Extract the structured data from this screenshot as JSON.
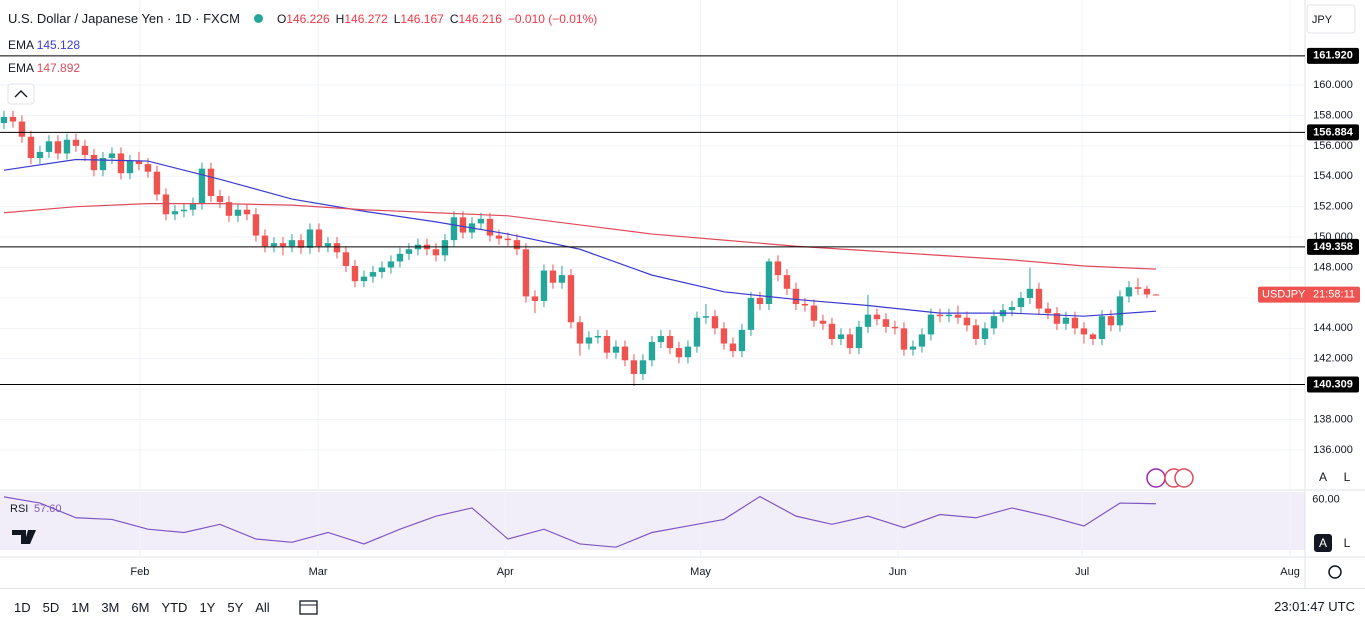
{
  "chart_data": {
    "type": "candlestick",
    "title": "U.S. Dollar / Japanese Yen · 1D · FXCM",
    "ohlc_labels": [
      "O",
      "H",
      "L",
      "C"
    ],
    "change_label": "−0.010 (−0.01%)",
    "currency": "JPY",
    "up_color": "#26a69a",
    "down_color": "#ef5350",
    "ylim": [
      133.37,
      165.59
    ],
    "yticks": [
      {
        "value": 136,
        "label": "136.000"
      },
      {
        "value": 138,
        "label": "138.000"
      },
      {
        "value": 140,
        "label": "140.000"
      },
      {
        "value": 142,
        "label": "142.000"
      },
      {
        "value": 144,
        "label": "144.000"
      },
      {
        "value": 146,
        "label": "146.000"
      },
      {
        "value": 148,
        "label": "148.000"
      },
      {
        "value": 150,
        "label": "150.000"
      },
      {
        "value": 152,
        "label": "152.000"
      },
      {
        "value": 154,
        "label": "154.000"
      },
      {
        "value": 156,
        "label": "156.000"
      },
      {
        "value": 158,
        "label": "158.000"
      },
      {
        "value": 160,
        "label": "160.000"
      }
    ],
    "xlim": [
      -0.44,
      144.56
    ],
    "xticks": [
      {
        "value": 15.1,
        "label": "Feb"
      },
      {
        "value": 34.9,
        "label": "Mar"
      },
      {
        "value": 55.7,
        "label": "Apr"
      },
      {
        "value": 77.4,
        "label": "May"
      },
      {
        "value": 99.3,
        "label": "Jun"
      },
      {
        "value": 119.8,
        "label": "Jul"
      },
      {
        "value": 142.9,
        "label": "Aug"
      }
    ],
    "grid": true,
    "open": [
      157.5,
      157.9,
      157.6,
      156.6,
      155.2,
      155.6,
      156.3,
      155.5,
      156.4,
      156.0,
      155.4,
      154.4,
      155.2,
      155.5,
      154.2,
      155.0,
      154.8,
      154.3,
      152.8,
      151.5,
      151.7,
      151.8,
      152.2,
      154.5,
      152.7,
      152.3,
      151.4,
      151.8,
      151.5,
      150.1,
      149.4,
      149.6,
      149.4,
      149.8,
      149.3,
      150.5,
      149.4,
      149.6,
      149.0,
      148.1,
      147.1,
      147.4,
      147.7,
      148.0,
      148.4,
      148.9,
      149.2,
      149.5,
      149.2,
      148.8,
      149.8,
      151.3,
      150.3,
      150.9,
      151.2,
      150.1,
      149.9,
      149.8,
      149.2,
      146.1,
      145.8,
      147.8,
      147.0,
      147.5,
      144.4,
      143.0,
      143.4,
      143.5,
      142.4,
      142.8,
      141.9,
      141.0,
      141.9,
      143.1,
      143.5,
      142.7,
      142.1,
      142.8,
      144.7,
      144.8,
      144.0,
      143.0,
      142.5,
      143.9,
      146.0,
      145.6,
      148.4,
      147.5,
      146.6,
      145.6,
      145.5,
      144.5,
      144.3,
      143.3,
      143.6,
      142.7,
      144.1,
      144.9,
      144.6,
      144.1,
      144.0,
      142.6,
      142.8,
      143.6,
      144.9,
      144.8,
      144.9,
      144.7,
      144.2,
      143.3,
      144.0,
      144.8,
      145.2,
      145.4,
      146.0,
      146.6,
      145.3,
      145.0,
      144.3,
      144.7,
      144.0,
      143.6,
      143.3,
      144.8,
      144.2,
      146.1,
      146.7,
      146.6,
      146.226
    ],
    "high": [
      158.3,
      158.3,
      158.0,
      157.0,
      156.0,
      156.7,
      156.7,
      156.8,
      156.8,
      156.4,
      155.8,
      155.6,
      155.9,
      155.9,
      155.4,
      155.6,
      155.2,
      154.7,
      153.2,
      152.1,
      152.2,
      152.6,
      154.9,
      154.9,
      153.1,
      152.7,
      152.2,
      152.2,
      151.9,
      150.5,
      150.0,
      150.0,
      150.2,
      150.2,
      150.9,
      150.9,
      150.0,
      150.0,
      149.4,
      148.5,
      147.8,
      148.1,
      148.4,
      148.8,
      149.3,
      149.6,
      149.9,
      149.9,
      149.6,
      150.2,
      151.7,
      151.7,
      151.3,
      151.6,
      151.6,
      150.5,
      150.3,
      150.2,
      149.6,
      146.5,
      148.2,
      148.2,
      148.1,
      147.9,
      144.8,
      143.8,
      143.9,
      143.9,
      143.2,
      143.2,
      142.3,
      142.3,
      143.5,
      143.9,
      143.9,
      143.1,
      143.2,
      145.1,
      145.6,
      145.2,
      144.4,
      143.4,
      144.3,
      146.4,
      146.4,
      148.6,
      148.8,
      147.9,
      147.0,
      146.0,
      145.9,
      144.9,
      144.7,
      144.0,
      144.0,
      144.5,
      146.2,
      145.3,
      145.0,
      144.5,
      144.4,
      143.2,
      144.0,
      145.3,
      145.3,
      145.3,
      145.5,
      145.1,
      144.6,
      144.4,
      145.2,
      145.6,
      145.8,
      146.4,
      148.0,
      147.0,
      145.7,
      145.4,
      145.1,
      145.1,
      144.4,
      143.7,
      145.2,
      145.2,
      146.5,
      147.1,
      147.3,
      146.8,
      146.272
    ],
    "low": [
      157.1,
      157.2,
      156.2,
      154.8,
      154.8,
      155.2,
      155.1,
      155.1,
      155.6,
      155.0,
      154.0,
      154.0,
      154.8,
      153.8,
      153.8,
      154.4,
      153.9,
      152.4,
      151.1,
      151.1,
      151.3,
      151.4,
      151.8,
      152.3,
      151.9,
      151.0,
      151.0,
      151.1,
      149.7,
      149.0,
      149.0,
      148.8,
      149.0,
      148.9,
      148.9,
      149.0,
      149.0,
      148.6,
      147.7,
      146.7,
      146.7,
      147.0,
      147.3,
      147.6,
      148.0,
      148.5,
      148.8,
      148.8,
      148.4,
      148.4,
      149.4,
      149.9,
      149.9,
      150.5,
      149.7,
      149.5,
      149.4,
      148.8,
      145.7,
      145.0,
      145.4,
      146.6,
      146.6,
      144.0,
      142.2,
      142.6,
      143.0,
      142.0,
      142.0,
      141.5,
      140.2,
      140.6,
      141.5,
      142.7,
      142.3,
      141.7,
      141.7,
      142.4,
      144.3,
      143.6,
      142.6,
      142.1,
      142.1,
      143.5,
      145.2,
      145.2,
      147.1,
      146.2,
      145.2,
      145.1,
      144.1,
      143.9,
      142.9,
      142.9,
      142.3,
      142.3,
      143.7,
      144.2,
      143.7,
      143.6,
      142.2,
      142.2,
      142.4,
      143.2,
      144.4,
      144.4,
      144.3,
      143.8,
      142.9,
      142.9,
      143.6,
      144.4,
      144.8,
      145.0,
      145.6,
      144.9,
      144.6,
      143.9,
      143.9,
      143.6,
      143.0,
      142.9,
      142.9,
      143.8,
      143.8,
      145.7,
      146.2,
      146.0,
      146.167
    ],
    "close": [
      157.9,
      157.6,
      156.6,
      155.2,
      155.6,
      156.3,
      155.5,
      156.4,
      156.0,
      155.4,
      154.4,
      155.2,
      155.5,
      154.2,
      155.0,
      154.8,
      154.3,
      152.8,
      151.5,
      151.7,
      151.8,
      152.2,
      154.5,
      152.7,
      152.3,
      151.4,
      151.8,
      151.5,
      150.1,
      149.4,
      149.6,
      149.4,
      149.8,
      149.3,
      150.5,
      149.4,
      149.6,
      149.0,
      148.1,
      147.1,
      147.4,
      147.7,
      148.0,
      148.4,
      148.9,
      149.2,
      149.5,
      149.2,
      148.8,
      149.8,
      151.3,
      150.3,
      150.9,
      151.2,
      150.1,
      149.9,
      149.8,
      149.2,
      146.1,
      145.8,
      147.8,
      147.0,
      147.5,
      144.4,
      143.0,
      143.4,
      143.5,
      142.4,
      142.8,
      141.9,
      141.0,
      141.9,
      143.1,
      143.5,
      142.7,
      142.1,
      142.8,
      144.7,
      144.8,
      144.0,
      143.0,
      142.5,
      143.9,
      146.0,
      145.6,
      148.4,
      147.5,
      146.6,
      145.6,
      145.5,
      144.5,
      144.3,
      143.3,
      143.6,
      142.7,
      144.1,
      144.9,
      144.6,
      144.1,
      144.0,
      142.6,
      142.8,
      143.6,
      144.9,
      144.8,
      144.9,
      144.7,
      144.2,
      143.3,
      144.0,
      144.8,
      145.2,
      145.4,
      146.0,
      146.6,
      145.3,
      145.0,
      144.3,
      144.7,
      144.0,
      143.6,
      143.3,
      144.8,
      144.2,
      146.1,
      146.7,
      146.6,
      146.226,
      146.216
    ],
    "series": [
      {
        "name": "EMA",
        "color": "#3b3bd1",
        "x": [
          0,
          8,
          16,
          24,
          32,
          40,
          48,
          56,
          64,
          72,
          80,
          88,
          96,
          104,
          112,
          120,
          128
        ],
        "values": [
          154.4,
          155.1,
          155.0,
          153.8,
          152.5,
          151.7,
          151.0,
          150.2,
          149.2,
          147.5,
          146.4,
          145.9,
          145.5,
          145.0,
          145.0,
          144.8,
          145.128
        ]
      },
      {
        "name": "EMA",
        "color": "#e04b5a",
        "x": [
          0,
          8,
          16,
          24,
          32,
          40,
          48,
          56,
          64,
          72,
          80,
          88,
          96,
          104,
          112,
          120,
          128
        ],
        "values": [
          151.6,
          152.0,
          152.2,
          152.2,
          152.1,
          151.8,
          151.6,
          151.4,
          150.8,
          150.2,
          149.8,
          149.4,
          149.1,
          148.8,
          148.5,
          148.1,
          147.892
        ]
      }
    ],
    "levels": [
      {
        "value": 161.92,
        "label": "161.920"
      },
      {
        "value": 156.884,
        "label": "156.884"
      },
      {
        "value": 149.358,
        "label": "149.358"
      },
      {
        "value": 140.309,
        "label": "140.309"
      }
    ],
    "price_label": "USDJPY",
    "countdown": "21:58:11",
    "rsi": {
      "name": "RSI",
      "color": "#7e57c2",
      "last_label": "57.60",
      "ylim": [
        66,
        25
      ],
      "yticks": [
        {
          "value": 60,
          "label": "60.00"
        }
      ],
      "x": [
        0,
        4,
        8,
        12,
        16,
        20,
        24,
        28,
        32,
        36,
        40,
        44,
        48,
        52,
        56,
        60,
        64,
        68,
        72,
        76,
        80,
        84,
        88,
        92,
        96,
        100,
        104,
        108,
        112,
        116,
        120,
        124,
        128
      ],
      "values": [
        61.8,
        58,
        49,
        48,
        42,
        40,
        45,
        36,
        34,
        40,
        33,
        42,
        50,
        55,
        36,
        42,
        33,
        31,
        40,
        44,
        48,
        62,
        50,
        45,
        50,
        43,
        51,
        49,
        55,
        50,
        44,
        58,
        57.6
      ]
    },
    "scale_buttons": [
      "A",
      "L"
    ],
    "ranges": [
      "1D",
      "5D",
      "1M",
      "3M",
      "6M",
      "YTD",
      "1Y",
      "5Y",
      "All"
    ],
    "clock": "23:01:47 UTC"
  }
}
